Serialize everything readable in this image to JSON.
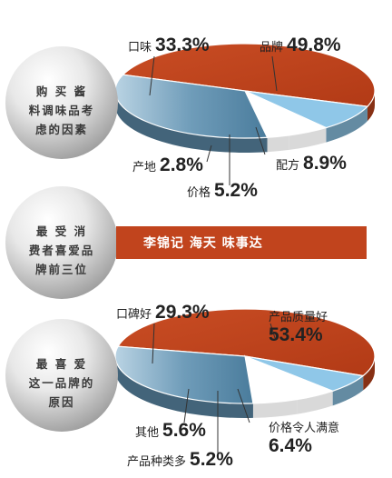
{
  "colors": {
    "brand_red": "#c1441d",
    "steel_blue": "#5f8fae",
    "light_blue": "#8fc7e8",
    "white": "#ffffff"
  },
  "chart_data": [
    {
      "type": "pie",
      "title": "购买酱料调味品考虑的因素",
      "title_lines": [
        "购 买 酱",
        "料调味品考",
        "虑的因素"
      ],
      "categories": [
        "品牌",
        "口味",
        "产地",
        "价格",
        "配方"
      ],
      "values": [
        49.8,
        33.3,
        2.8,
        5.2,
        8.9
      ],
      "value_labels": [
        "49.8%",
        "33.3%",
        "2.8%",
        "5.2%",
        "8.9%"
      ],
      "slice_colors": [
        "#c1441d",
        "#5f8fae",
        "#ffffff",
        "#ffffff",
        "#8fc7e8"
      ]
    },
    {
      "type": "pie",
      "title": "最喜爱这一品牌的原因",
      "title_lines": [
        "最 喜 爱",
        "这一品牌的",
        "原因"
      ],
      "categories": [
        "产品质量好",
        "口碑好",
        "其他",
        "产品种类多",
        "价格令人满意"
      ],
      "values": [
        53.4,
        29.3,
        5.6,
        5.2,
        6.4
      ],
      "value_labels": [
        "53.4%",
        "29.3%",
        "5.6%",
        "5.2%",
        "6.4%"
      ],
      "slice_colors": [
        "#c1441d",
        "#5f8fae",
        "#ffffff",
        "#ffffff",
        "#8fc7e8"
      ]
    }
  ],
  "middle": {
    "title_lines": [
      "最 受 消",
      "费者喜爱品",
      "牌前三位"
    ],
    "brands": "李锦记  海天  味事达"
  }
}
